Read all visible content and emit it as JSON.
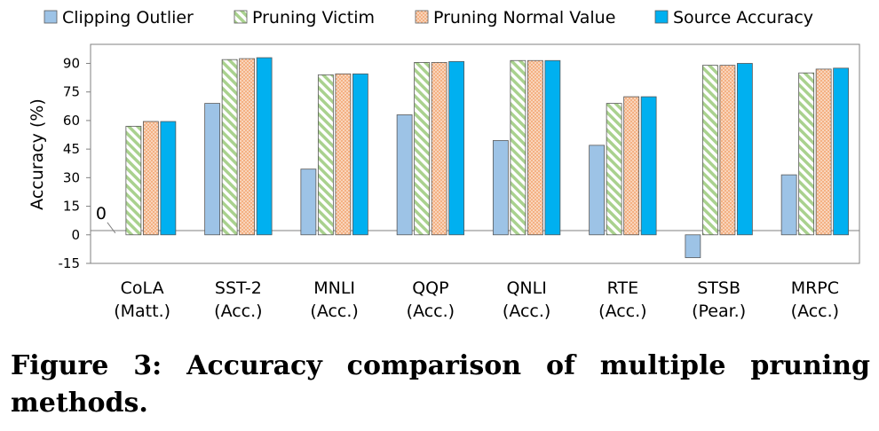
{
  "chart_data": {
    "type": "bar",
    "ylabel": "Accuracy (%)",
    "ylim": [
      -15,
      100
    ],
    "yticks": [
      -15,
      0,
      15,
      30,
      45,
      60,
      75,
      90
    ],
    "grid": false,
    "legend_position": "top",
    "categories": [
      {
        "line1": "CoLA",
        "line2": "(Matt.)"
      },
      {
        "line1": "SST-2",
        "line2": "(Acc.)"
      },
      {
        "line1": "MNLI",
        "line2": "(Acc.)"
      },
      {
        "line1": "QQP",
        "line2": "(Acc.)"
      },
      {
        "line1": "QNLI",
        "line2": "(Acc.)"
      },
      {
        "line1": "RTE",
        "line2": "(Acc.)"
      },
      {
        "line1": "STSB",
        "line2": "(Pear.)"
      },
      {
        "line1": "MRPC",
        "line2": "(Acc.)"
      }
    ],
    "series": [
      {
        "name": "Clipping Outlier",
        "color": "#9dc3e6",
        "pattern": "solid",
        "values": [
          0,
          69,
          34.5,
          63,
          49.5,
          47,
          -12,
          31.5
        ]
      },
      {
        "name": "Pruning Victim",
        "color": "#a9d18e",
        "pattern": "hatch",
        "values": [
          57,
          92,
          84,
          90.5,
          91.5,
          69,
          89,
          85
        ]
      },
      {
        "name": "Pruning Normal Value",
        "color": "#f4b183",
        "pattern": "dots",
        "values": [
          59.5,
          92.5,
          84.5,
          90.5,
          91.5,
          72.5,
          89,
          87
        ]
      },
      {
        "name": "Source Accuracy",
        "color": "#00b0f0",
        "pattern": "solid",
        "values": [
          59.5,
          93,
          84.5,
          91,
          91.5,
          72.5,
          90,
          87.5
        ]
      }
    ],
    "annotations": [
      {
        "text": "0",
        "category": 0,
        "series": 0
      }
    ]
  },
  "caption": "Figure 3: Accuracy comparison of multiple pruning methods."
}
